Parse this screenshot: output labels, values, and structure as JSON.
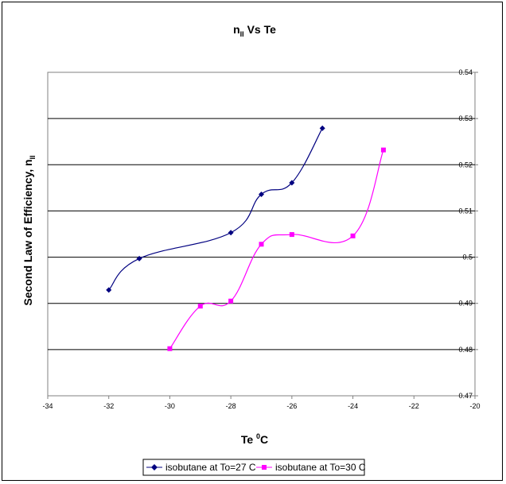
{
  "chart_data": {
    "type": "line",
    "title": "n",
    "title_sub": "II",
    "title_rest": " Vs Te",
    "xlabel": "Te ",
    "xlabel_sup": "0",
    "xlabel_rest": "C",
    "ylabel": "Second Law of Efficiency, n",
    "ylabel_sub": "II",
    "xlim": [
      -34,
      -20
    ],
    "ylim": [
      0.47,
      0.54
    ],
    "x_ticks": [
      "-34",
      "-32",
      "-30",
      "-28",
      "-26",
      "-24",
      "-22",
      "-20"
    ],
    "y_ticks": [
      "0.47",
      "0.48",
      "0.49",
      "0.5",
      "0.51",
      "0.52",
      "0.53",
      "0.54"
    ],
    "y_axis_side": "right",
    "grid": "horizontal",
    "legend_position": "bottom",
    "series": [
      {
        "name": "isobutane at To=27 C",
        "color": "#000080",
        "marker": "diamond",
        "x": [
          -32,
          -31,
          -28,
          -27,
          -26,
          -25
        ],
        "y": [
          0.4929,
          0.4997,
          0.5053,
          0.5136,
          0.5161,
          0.5279
        ]
      },
      {
        "name": "isobutane at To=30 C",
        "color": "#FF00FF",
        "marker": "square",
        "x": [
          -30,
          -29,
          -28,
          -27,
          -26,
          -24,
          -23
        ],
        "y": [
          0.4802,
          0.4894,
          0.4905,
          0.5028,
          0.5049,
          0.5046,
          0.5232
        ]
      }
    ]
  }
}
